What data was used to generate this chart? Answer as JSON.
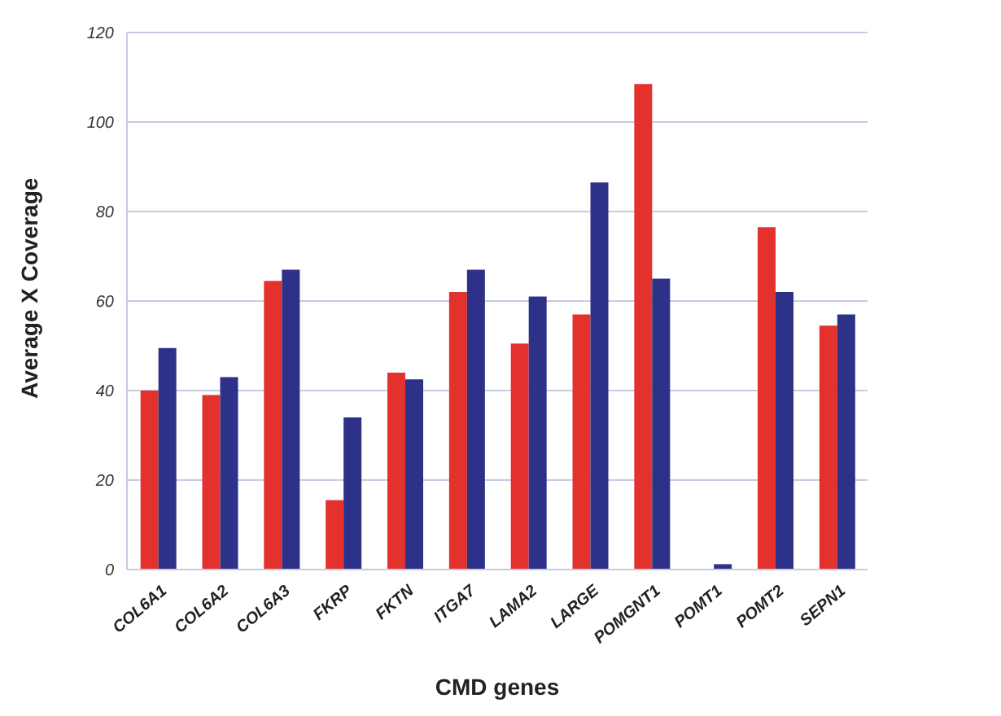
{
  "chart_data": {
    "type": "bar",
    "xlabel": "CMD genes",
    "ylabel": "Average X Coverage",
    "categories": [
      "COL6A1",
      "COL6A2",
      "COL6A3",
      "FKRP",
      "FKTN",
      "ITGA7",
      "LAMA2",
      "LARGE",
      "POMGNT1",
      "POMT1",
      "POMT2",
      "SEPN1"
    ],
    "series": [
      {
        "color": "#e3312d",
        "values": [
          40,
          39,
          64.5,
          15.5,
          44,
          62,
          50.5,
          57,
          108.5,
          null,
          76.5,
          54.5
        ]
      },
      {
        "color": "#2e3188",
        "values": [
          49.5,
          43,
          67,
          34,
          42.5,
          67,
          61,
          86.5,
          65,
          1.2,
          62,
          57
        ]
      }
    ],
    "ylim": [
      0,
      120
    ],
    "yticks": [
      0,
      20,
      40,
      60,
      80,
      100,
      120
    ],
    "grid": "y",
    "legend": false
  }
}
